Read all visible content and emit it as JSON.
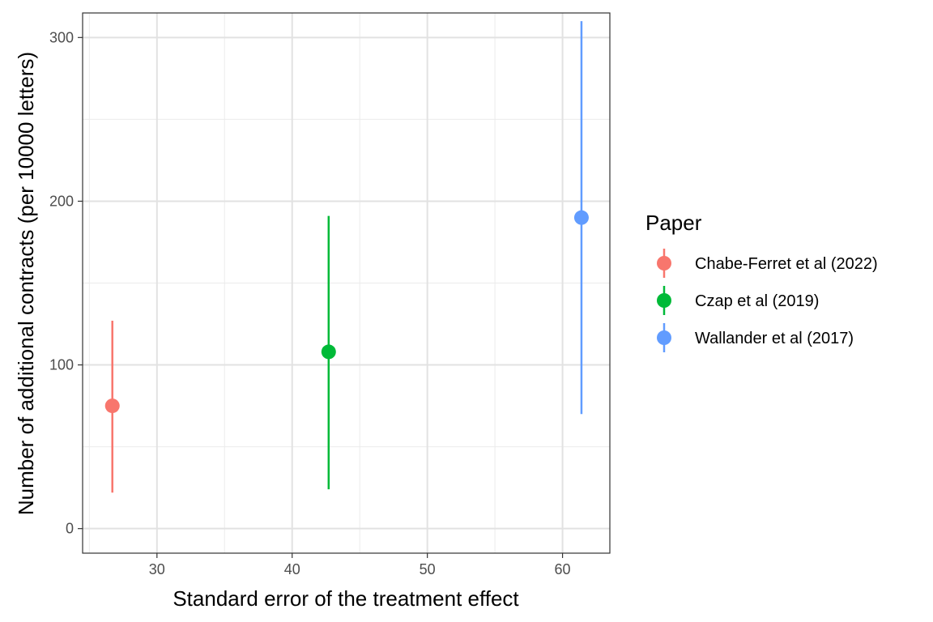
{
  "chart_data": {
    "type": "scatter",
    "title": "",
    "xlabel": "Standard error of the treatment effect",
    "ylabel": "Number of additional contracts (per 10000 letters)",
    "xlim": [
      24.5,
      63.5
    ],
    "ylim": [
      -15,
      315
    ],
    "x_ticks": [
      30,
      40,
      50,
      60
    ],
    "y_ticks": [
      0,
      100,
      200,
      300
    ],
    "x_tick_labels": [
      "30",
      "40",
      "50",
      "60"
    ],
    "y_tick_labels": [
      "0",
      "100",
      "200",
      "300"
    ],
    "grid": true,
    "legend_position": "right",
    "legend_title": "Paper",
    "series": [
      {
        "name": "Chabe-Ferret et al (2022)",
        "color": "#F8766D",
        "x": 26.7,
        "y": 75,
        "ci_low": 22,
        "ci_high": 127
      },
      {
        "name": "Czap et al (2019)",
        "color": "#00BA38",
        "x": 42.7,
        "y": 108,
        "ci_low": 24,
        "ci_high": 191
      },
      {
        "name": "Wallander et al (2017)",
        "color": "#619CFF",
        "x": 61.4,
        "y": 190,
        "ci_low": 70,
        "ci_high": 310
      }
    ]
  }
}
